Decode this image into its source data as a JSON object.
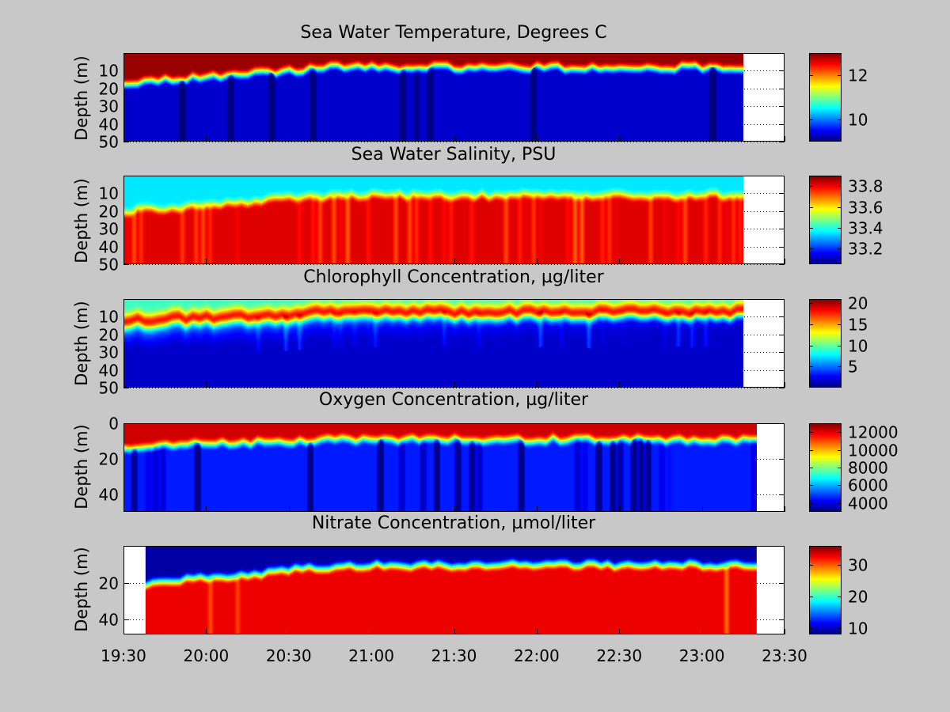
{
  "colormap": "jet",
  "colors": {
    "figure_background": "#c8c8c8",
    "axes_background": "#ffffff",
    "gridline": "#000000"
  },
  "shared_x_axis": {
    "label": "",
    "ticks": [
      "19:30",
      "20:00",
      "20:30",
      "21:00",
      "21:30",
      "22:00",
      "22:30",
      "23:00",
      "23:30"
    ],
    "range": [
      "19:30",
      "23:30"
    ]
  },
  "chart_data": [
    {
      "type": "heatmap",
      "title": "Sea Water Temperature, Degrees C",
      "ylabel": "Depth (m)",
      "y_reversed": true,
      "ylim": [
        0,
        50
      ],
      "yticks": [
        10,
        20,
        30,
        40,
        50
      ],
      "ytick_labels": [
        "10",
        "20",
        "30",
        "40",
        "50"
      ],
      "x_start": "19:30",
      "x_data_end": "23:15",
      "colorbar": {
        "min": 9,
        "max": 13,
        "ticks": [
          10,
          12
        ],
        "tick_labels": [
          "10",
          "12"
        ]
      },
      "field": {
        "kind": "surface_high",
        "surface_value": 12.9,
        "deep_value": 9.3,
        "layer_depth_start": 17,
        "layer_depth_end": 8,
        "transition": 4,
        "spikes": 0.1
      },
      "grid": "right-dotted"
    },
    {
      "type": "heatmap",
      "title": "Sea Water Salinity, PSU",
      "ylabel": "Depth (m)",
      "y_reversed": true,
      "ylim": [
        0,
        50
      ],
      "yticks": [
        10,
        20,
        30,
        40,
        50
      ],
      "ytick_labels": [
        "10",
        "20",
        "30",
        "40",
        "50"
      ],
      "x_start": "19:30",
      "x_data_end": "23:15",
      "colorbar": {
        "min": 33.05,
        "max": 33.9,
        "ticks": [
          33.2,
          33.4,
          33.6,
          33.8
        ],
        "tick_labels": [
          "33.2",
          "33.4",
          "33.6",
          "33.8"
        ]
      },
      "field": {
        "kind": "surface_low",
        "surface_value": 33.35,
        "deep_value": 33.82,
        "layer_depth_start": 20,
        "layer_depth_end": 11,
        "transition": 4,
        "spikes": 0.55
      },
      "grid": "right-dotted"
    },
    {
      "type": "heatmap",
      "title": "Chlorophyll Concentration, µg/liter",
      "ylabel": "Depth (m)",
      "y_reversed": true,
      "ylim": [
        0,
        50
      ],
      "yticks": [
        10,
        20,
        30,
        40,
        50
      ],
      "ytick_labels": [
        "10",
        "20",
        "30",
        "40",
        "50"
      ],
      "x_start": "19:30",
      "x_data_end": "23:15",
      "colorbar": {
        "min": 0,
        "max": 21,
        "ticks": [
          5,
          10,
          15,
          20
        ],
        "tick_labels": [
          "5",
          "10",
          "15",
          "20"
        ]
      },
      "field": {
        "kind": "subsurface_max",
        "surface_value": 9,
        "peak_value": 18,
        "deep_value": 1.5,
        "peak_depth_start": 12,
        "peak_depth_end": 7,
        "transition": 3,
        "spikes": 0.3
      },
      "grid": "right-dotted"
    },
    {
      "type": "heatmap",
      "title": "Oxygen Concentration, µg/liter",
      "ylabel": "Depth (m)",
      "y_reversed": true,
      "ylim": [
        0,
        50
      ],
      "yticks": [
        0,
        20,
        40
      ],
      "ytick_labels": [
        "0",
        "20",
        "40"
      ],
      "x_start": "19:30",
      "x_data_end": "23:20",
      "colorbar": {
        "min": 3000,
        "max": 13000,
        "ticks": [
          4000,
          6000,
          8000,
          10000,
          12000
        ],
        "tick_labels": [
          "4000",
          "6000",
          "8000",
          "10000",
          "12000"
        ]
      },
      "field": {
        "kind": "surface_high",
        "surface_value": 12200,
        "deep_value": 4500,
        "layer_depth_start": 13,
        "layer_depth_end": 9,
        "transition": 4,
        "spikes": 0.35
      },
      "grid": "right-dotted"
    },
    {
      "type": "heatmap",
      "title": "Nitrate Concentration, µmol/liter",
      "ylabel": "Depth (m)",
      "y_reversed": true,
      "ylim": [
        0,
        48
      ],
      "yticks": [
        20,
        40
      ],
      "ytick_labels": [
        "20",
        "40"
      ],
      "x_start": "19:38",
      "x_data_end": "23:20",
      "colorbar": {
        "min": 8,
        "max": 36,
        "ticks": [
          10,
          20,
          30
        ],
        "tick_labels": [
          "10",
          "20",
          "30"
        ]
      },
      "field": {
        "kind": "surface_low",
        "surface_value": 9,
        "deep_value": 33,
        "layer_depth_start": 20,
        "layer_depth_end": 10,
        "transition": 4,
        "spikes": 0.05
      },
      "grid": "right-dotted"
    }
  ]
}
